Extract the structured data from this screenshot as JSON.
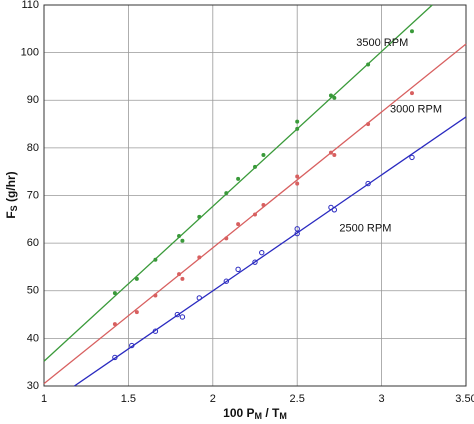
{
  "chart_data": {
    "type": "scatter",
    "x_label": {
      "a": "100 P",
      "a_sub": "M",
      "b": " / T",
      "b_sub": "M"
    },
    "y_label": {
      "main": "F",
      "sub": "S",
      "rest": " (g/hr)"
    },
    "xlim": [
      1,
      3.5
    ],
    "ylim": [
      30,
      110
    ],
    "xticks": [
      1,
      1.5,
      2,
      2.5,
      3,
      {
        "value": 3.5,
        "label": "3.50"
      }
    ],
    "yticks": [
      30,
      40,
      50,
      60,
      70,
      80,
      90,
      100,
      110
    ],
    "grid": true,
    "series": [
      {
        "name": "3500 RPM",
        "color": "#3a9a3a",
        "marker": "dot",
        "label_x": 2.85,
        "label_y": 102,
        "x": [
          1.42,
          1.55,
          1.66,
          1.8,
          1.82,
          1.92,
          2.08,
          2.15,
          2.25,
          2.3,
          2.5,
          2.5,
          2.7,
          2.72,
          2.92,
          3.18
        ],
        "values": [
          49.5,
          52.5,
          56.5,
          61.5,
          60.5,
          65.5,
          70.5,
          73.5,
          76,
          78.5,
          85.5,
          84,
          91,
          90.5,
          97.5,
          104.5
        ],
        "fit_x": [
          1,
          3.3
        ],
        "fit_y": [
          35.2,
          110
        ]
      },
      {
        "name": "3000 RPM",
        "color": "#d86060",
        "marker": "dot",
        "label_x": 3.05,
        "label_y": 88,
        "x": [
          1.42,
          1.55,
          1.66,
          1.8,
          1.82,
          1.92,
          2.08,
          2.15,
          2.25,
          2.3,
          2.5,
          2.5,
          2.7,
          2.72,
          2.92,
          3.18
        ],
        "values": [
          43,
          45.5,
          49,
          53.5,
          52.5,
          57,
          61,
          64,
          66,
          68,
          74,
          72.5,
          79,
          78.5,
          85,
          91.5
        ],
        "fit_x": [
          1,
          3.5
        ],
        "fit_y": [
          30.5,
          101.8
        ]
      },
      {
        "name": "2500 RPM",
        "color": "#2a2ac0",
        "marker": "ring",
        "label_x": 2.75,
        "label_y": 63,
        "x": [
          1.42,
          1.52,
          1.66,
          1.79,
          1.82,
          1.92,
          2.08,
          2.15,
          2.25,
          2.29,
          2.5,
          2.5,
          2.7,
          2.72,
          2.92,
          3.18
        ],
        "values": [
          36,
          38.5,
          41.5,
          45,
          44.5,
          48.5,
          52,
          54.5,
          56,
          58,
          63,
          62,
          67.5,
          67,
          72.5,
          78
        ],
        "fit_x": [
          1.18,
          3.5
        ],
        "fit_y": [
          30,
          86.5
        ]
      }
    ]
  }
}
